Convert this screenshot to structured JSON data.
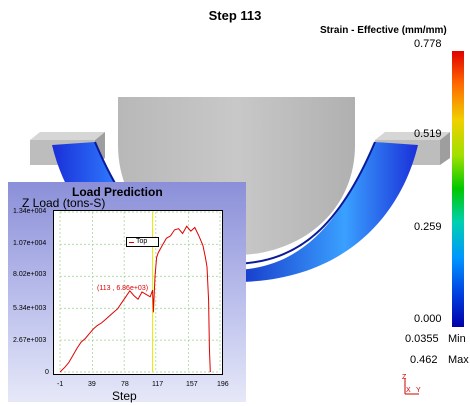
{
  "step_title": "Step  113",
  "legend": {
    "title": "Strain - Effective (mm/mm)",
    "ticks": [
      "0.778",
      "0.519",
      "0.259",
      "0.000"
    ],
    "min_value": "0.0355",
    "min_label": "Min",
    "max_value": "0.462",
    "max_label": "Max"
  },
  "axis_triad": {
    "z": "Z",
    "x": "X",
    "y": "Y"
  },
  "chart": {
    "title": "Load Prediction",
    "ylabel": "Z Load (tons-S)",
    "xlabel": "Step",
    "y_ticks": [
      "1.34e+004",
      "1.07e+004",
      "8.02e+003",
      "5.34e+003",
      "2.67e+003",
      "0"
    ],
    "x_ticks": [
      "-1",
      "39",
      "78",
      "117",
      "157",
      "196"
    ],
    "annotation": "(113 , 6.86e+03)",
    "top_tag": "Top"
  },
  "chart_data": {
    "type": "line",
    "title": "Load Prediction",
    "xlabel": "Step",
    "ylabel": "Z Load (tons-S)",
    "xlim": [
      -1,
      196
    ],
    "ylim": [
      0,
      13400
    ],
    "grid": true,
    "current_step": 113,
    "current_value": 6860,
    "series": [
      {
        "color": "#e00000",
        "x": [
          -1,
          5,
          10,
          15,
          20,
          25,
          30,
          35,
          40,
          45,
          50,
          55,
          60,
          65,
          70,
          75,
          80,
          85,
          90,
          95,
          100,
          105,
          110,
          113,
          114,
          116,
          118,
          120,
          125,
          130,
          135,
          140,
          145,
          150,
          155,
          160,
          165,
          170,
          175,
          178,
          180,
          182,
          183,
          184
        ],
        "y": [
          0,
          400,
          800,
          1400,
          2000,
          2500,
          2800,
          3200,
          3600,
          3900,
          4100,
          4400,
          4700,
          5000,
          5300,
          5800,
          6300,
          6800,
          6400,
          6100,
          6700,
          6500,
          6300,
          6860,
          5000,
          8000,
          9600,
          10000,
          10600,
          11200,
          11400,
          11900,
          12000,
          11600,
          12200,
          11800,
          12100,
          11400,
          10600,
          9600,
          8800,
          6000,
          2000,
          0
        ]
      }
    ]
  }
}
